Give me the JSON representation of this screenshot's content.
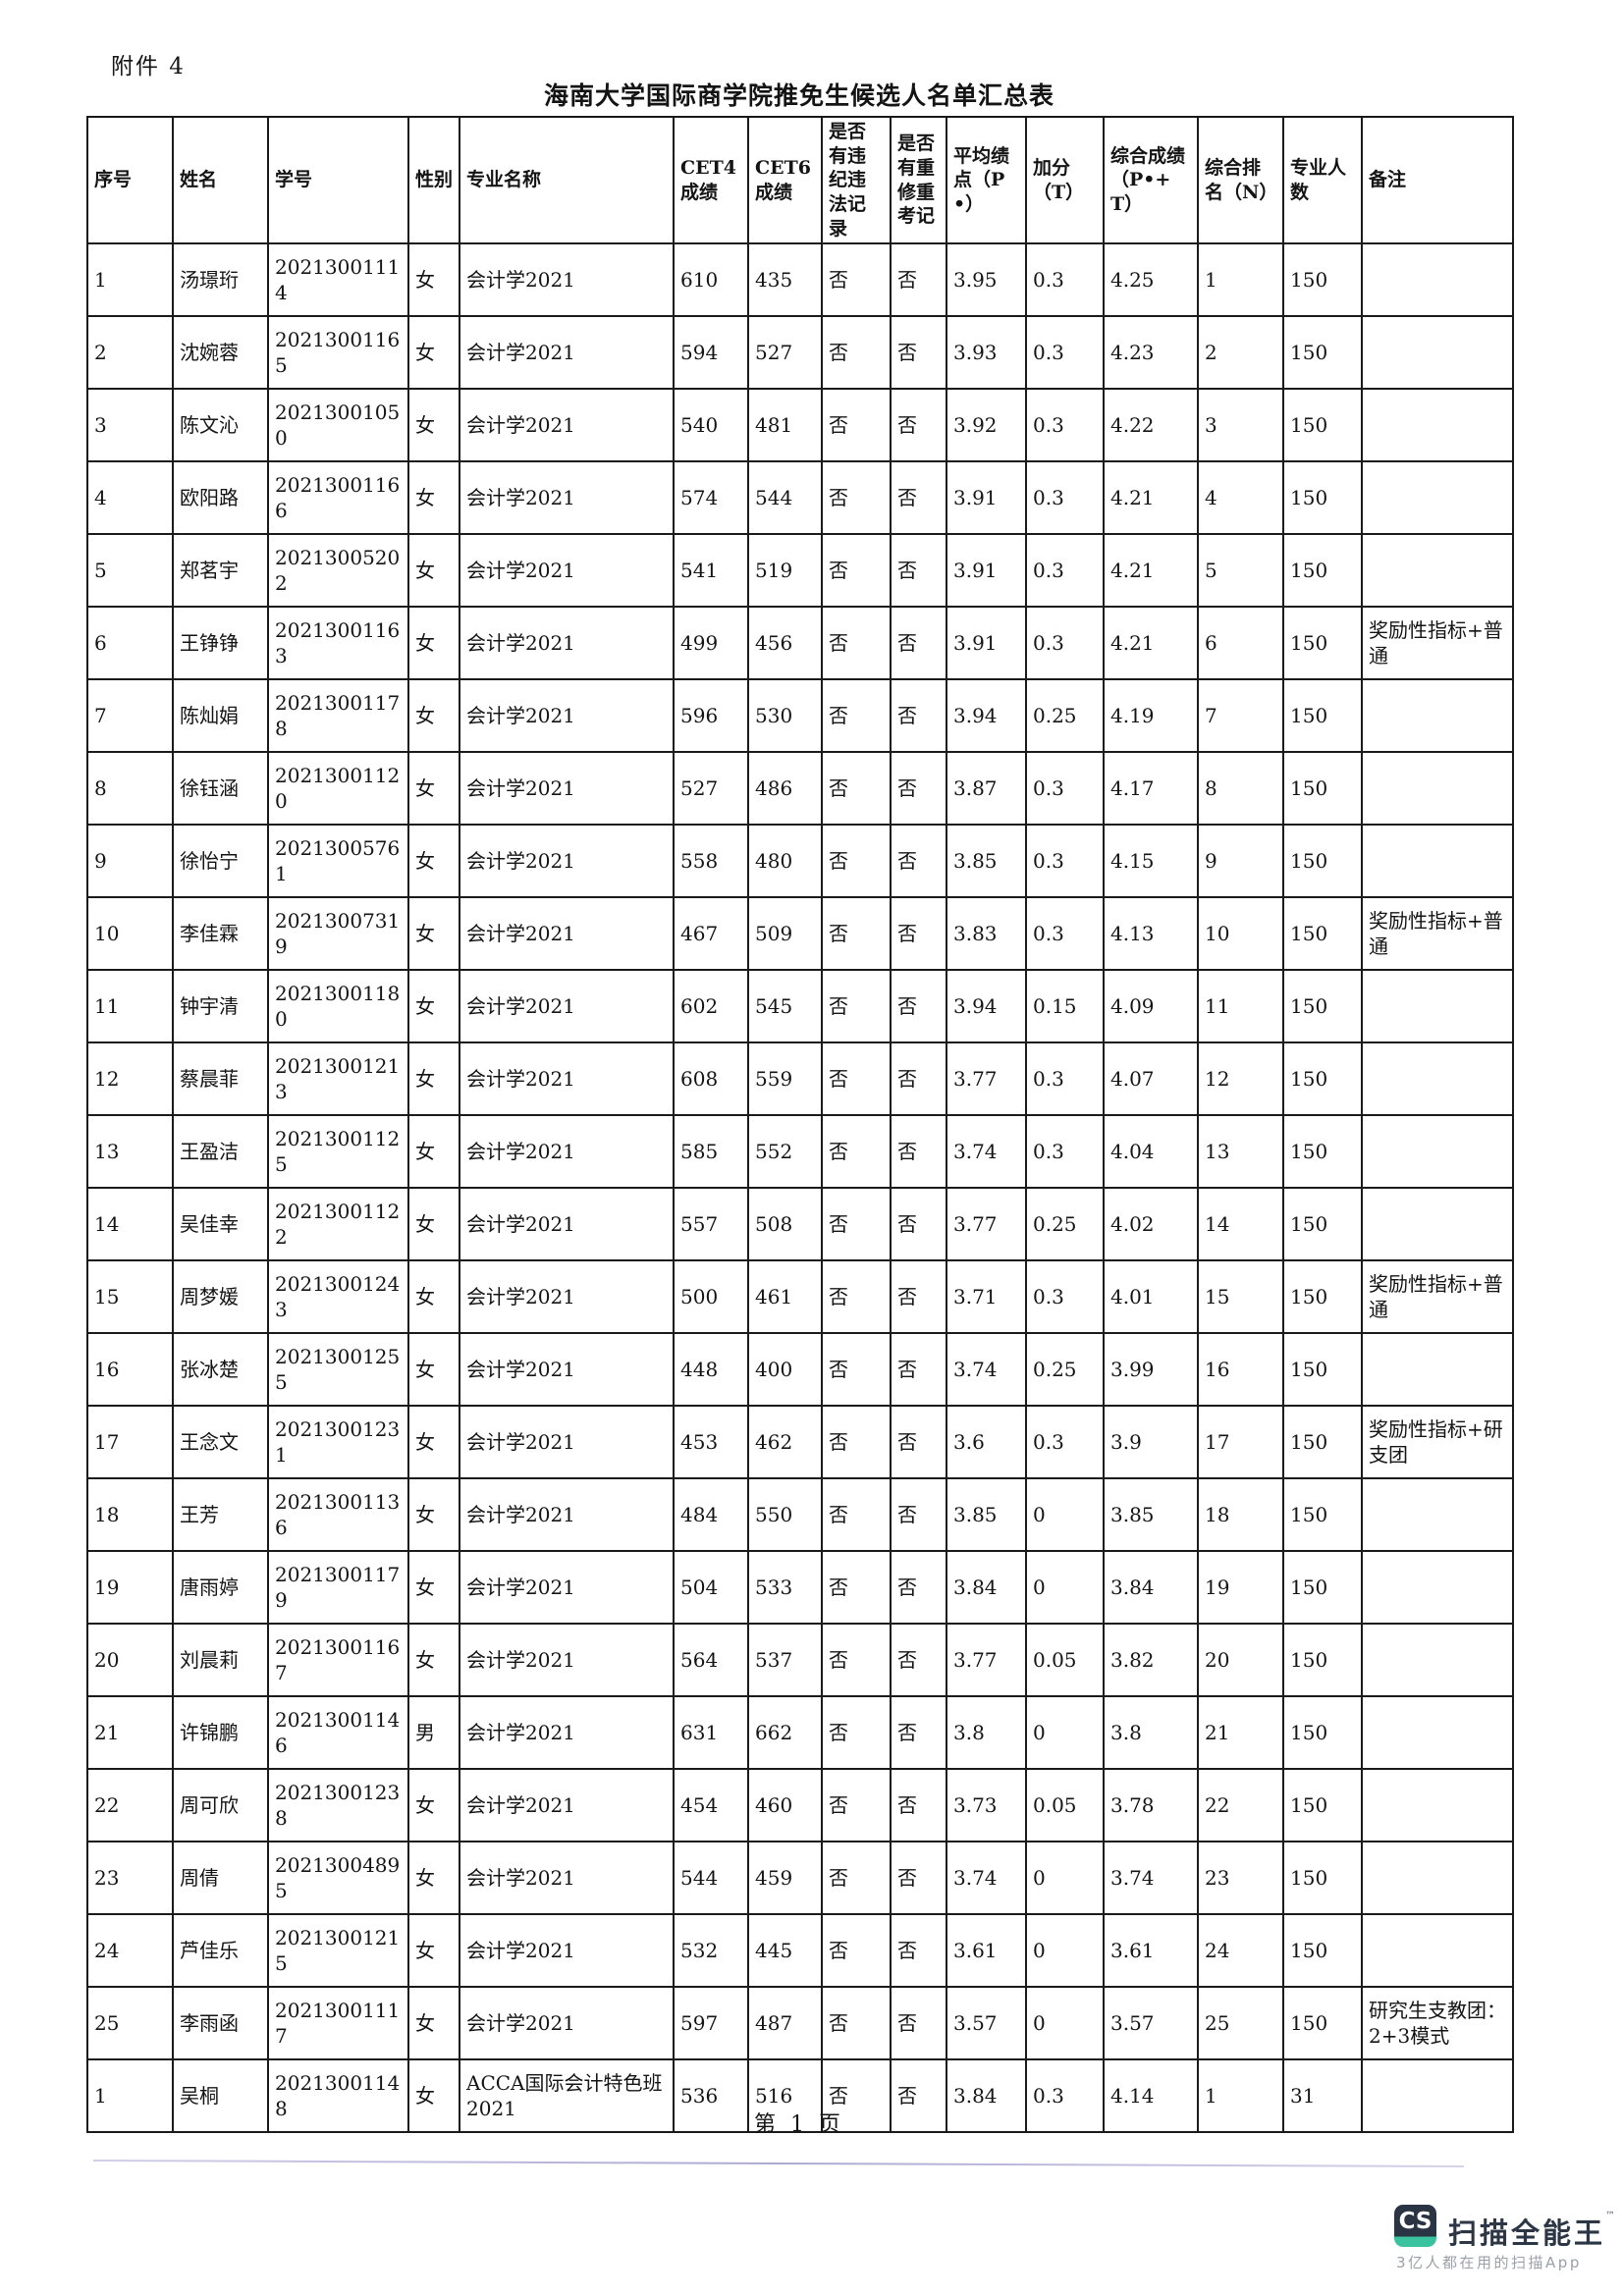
{
  "page": {
    "attachment_label": "附件 4",
    "title": "海南大学国际商学院推免生候选人名单汇总表",
    "footer": "第 1 页"
  },
  "table": {
    "headers": [
      "序号",
      "姓名",
      "学号",
      "性别",
      "专业名称",
      "CET4成绩",
      "CET6成绩",
      "是否有违纪违法记录",
      "是否有重修重考记",
      "平均绩点（P•）",
      "加分（T）",
      "综合成绩（P•+T）",
      "综合排名（N）",
      "专业人数",
      "备注"
    ],
    "rows": [
      [
        "1",
        "汤璟珩",
        "20213001114",
        "女",
        "会计学2021",
        "610",
        "435",
        "否",
        "否",
        "3.95",
        "0.3",
        "4.25",
        "1",
        "150",
        ""
      ],
      [
        "2",
        "沈婉蓉",
        "20213001165",
        "女",
        "会计学2021",
        "594",
        "527",
        "否",
        "否",
        "3.93",
        "0.3",
        "4.23",
        "2",
        "150",
        ""
      ],
      [
        "3",
        "陈文沁",
        "20213001050",
        "女",
        "会计学2021",
        "540",
        "481",
        "否",
        "否",
        "3.92",
        "0.3",
        "4.22",
        "3",
        "150",
        ""
      ],
      [
        "4",
        "欧阳路",
        "20213001166",
        "女",
        "会计学2021",
        "574",
        "544",
        "否",
        "否",
        "3.91",
        "0.3",
        "4.21",
        "4",
        "150",
        ""
      ],
      [
        "5",
        "郑茗宇",
        "20213005202",
        "女",
        "会计学2021",
        "541",
        "519",
        "否",
        "否",
        "3.91",
        "0.3",
        "4.21",
        "5",
        "150",
        ""
      ],
      [
        "6",
        "王铮铮",
        "20213001163",
        "女",
        "会计学2021",
        "499",
        "456",
        "否",
        "否",
        "3.91",
        "0.3",
        "4.21",
        "6",
        "150",
        "奖励性指标+普通"
      ],
      [
        "7",
        "陈灿娟",
        "20213001178",
        "女",
        "会计学2021",
        "596",
        "530",
        "否",
        "否",
        "3.94",
        "0.25",
        "4.19",
        "7",
        "150",
        ""
      ],
      [
        "8",
        "徐钰涵",
        "20213001120",
        "女",
        "会计学2021",
        "527",
        "486",
        "否",
        "否",
        "3.87",
        "0.3",
        "4.17",
        "8",
        "150",
        ""
      ],
      [
        "9",
        "徐怡宁",
        "20213005761",
        "女",
        "会计学2021",
        "558",
        "480",
        "否",
        "否",
        "3.85",
        "0.3",
        "4.15",
        "9",
        "150",
        ""
      ],
      [
        "10",
        "李佳霖",
        "20213007319",
        "女",
        "会计学2021",
        "467",
        "509",
        "否",
        "否",
        "3.83",
        "0.3",
        "4.13",
        "10",
        "150",
        "奖励性指标+普通"
      ],
      [
        "11",
        "钟宇清",
        "20213001180",
        "女",
        "会计学2021",
        "602",
        "545",
        "否",
        "否",
        "3.94",
        "0.15",
        "4.09",
        "11",
        "150",
        ""
      ],
      [
        "12",
        "蔡晨菲",
        "20213001213",
        "女",
        "会计学2021",
        "608",
        "559",
        "否",
        "否",
        "3.77",
        "0.3",
        "4.07",
        "12",
        "150",
        ""
      ],
      [
        "13",
        "王盈洁",
        "20213001125",
        "女",
        "会计学2021",
        "585",
        "552",
        "否",
        "否",
        "3.74",
        "0.3",
        "4.04",
        "13",
        "150",
        ""
      ],
      [
        "14",
        "吴佳幸",
        "20213001122",
        "女",
        "会计学2021",
        "557",
        "508",
        "否",
        "否",
        "3.77",
        "0.25",
        "4.02",
        "14",
        "150",
        ""
      ],
      [
        "15",
        "周梦媛",
        "20213001243",
        "女",
        "会计学2021",
        "500",
        "461",
        "否",
        "否",
        "3.71",
        "0.3",
        "4.01",
        "15",
        "150",
        "奖励性指标+普通"
      ],
      [
        "16",
        "张冰楚",
        "20213001255",
        "女",
        "会计学2021",
        "448",
        "400",
        "否",
        "否",
        "3.74",
        "0.25",
        "3.99",
        "16",
        "150",
        ""
      ],
      [
        "17",
        "王念文",
        "20213001231",
        "女",
        "会计学2021",
        "453",
        "462",
        "否",
        "否",
        "3.6",
        "0.3",
        "3.9",
        "17",
        "150",
        "奖励性指标+研支团"
      ],
      [
        "18",
        "王芳",
        "20213001136",
        "女",
        "会计学2021",
        "484",
        "550",
        "否",
        "否",
        "3.85",
        "0",
        "3.85",
        "18",
        "150",
        ""
      ],
      [
        "19",
        "唐雨婷",
        "20213001179",
        "女",
        "会计学2021",
        "504",
        "533",
        "否",
        "否",
        "3.84",
        "0",
        "3.84",
        "19",
        "150",
        ""
      ],
      [
        "20",
        "刘晨莉",
        "20213001167",
        "女",
        "会计学2021",
        "564",
        "537",
        "否",
        "否",
        "3.77",
        "0.05",
        "3.82",
        "20",
        "150",
        ""
      ],
      [
        "21",
        "许锦鹏",
        "20213001146",
        "男",
        "会计学2021",
        "631",
        "662",
        "否",
        "否",
        "3.8",
        "0",
        "3.8",
        "21",
        "150",
        ""
      ],
      [
        "22",
        "周可欣",
        "20213001238",
        "女",
        "会计学2021",
        "454",
        "460",
        "否",
        "否",
        "3.73",
        "0.05",
        "3.78",
        "22",
        "150",
        ""
      ],
      [
        "23",
        "周倩",
        "20213004895",
        "女",
        "会计学2021",
        "544",
        "459",
        "否",
        "否",
        "3.74",
        "0",
        "3.74",
        "23",
        "150",
        ""
      ],
      [
        "24",
        "芦佳乐",
        "20213001215",
        "女",
        "会计学2021",
        "532",
        "445",
        "否",
        "否",
        "3.61",
        "0",
        "3.61",
        "24",
        "150",
        ""
      ],
      [
        "25",
        "李雨函",
        "20213001117",
        "女",
        "会计学2021",
        "597",
        "487",
        "否",
        "否",
        "3.57",
        "0",
        "3.57",
        "25",
        "150",
        "研究生支教团：2+3模式"
      ],
      [
        "1",
        "吴桐",
        "20213001148",
        "女",
        "ACCA国际会计特色班2021",
        "536",
        "516",
        "否",
        "否",
        "3.84",
        "0.3",
        "4.14",
        "1",
        "31",
        ""
      ]
    ]
  },
  "watermark": {
    "logo_text": "CS",
    "brand": "扫描全能王",
    "tm": "™",
    "tagline": "3亿人都在用的扫描App",
    "badge_color": "#2a3442",
    "badge_accent": "#3bc39f"
  }
}
